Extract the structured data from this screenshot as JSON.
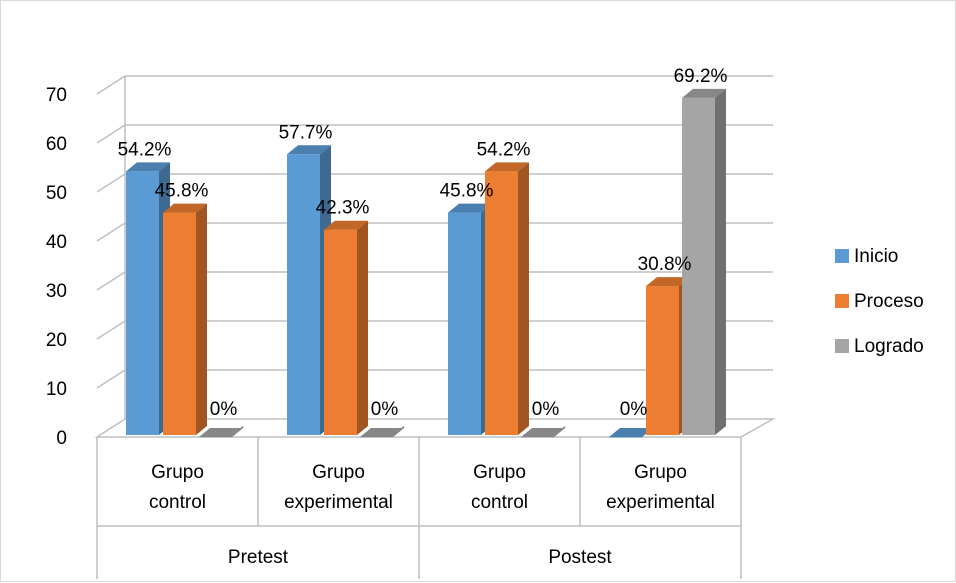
{
  "chart_data": {
    "type": "bar",
    "style": "3d-clustered-column",
    "groups": [
      {
        "label": "Pretest",
        "categories": [
          "Grupo\ncontrol",
          "Grupo\nexperimental"
        ]
      },
      {
        "label": "Postest",
        "categories": [
          "Grupo\ncontrol",
          "Grupo\nexperimental"
        ]
      }
    ],
    "categories": [
      [
        "Grupo",
        "control"
      ],
      [
        "Grupo",
        "experimental"
      ],
      [
        "Grupo",
        "control"
      ],
      [
        "Grupo",
        "experimental"
      ]
    ],
    "series": [
      {
        "name": "Inicio",
        "color": "#5b9bd5",
        "values": [
          54.2,
          57.7,
          45.8,
          0
        ],
        "labels": [
          "54.2%",
          "57.7%",
          "45.8%",
          "0%"
        ]
      },
      {
        "name": "Proceso",
        "color": "#ed7d31",
        "values": [
          45.8,
          42.3,
          54.2,
          30.8
        ],
        "labels": [
          "45.8%",
          "42.3%",
          "54.2%",
          "30.8%"
        ]
      },
      {
        "name": "Logrado",
        "color": "#a5a5a5",
        "values": [
          0,
          0,
          0,
          69.2
        ],
        "labels": [
          "0%",
          "0%",
          "0%",
          "69.2%"
        ]
      }
    ],
    "y_ticks": [
      "0",
      "10",
      "20",
      "30",
      "40",
      "50",
      "60",
      "70"
    ],
    "ylim": [
      0,
      70
    ],
    "grid": true,
    "legend_position": "right"
  }
}
